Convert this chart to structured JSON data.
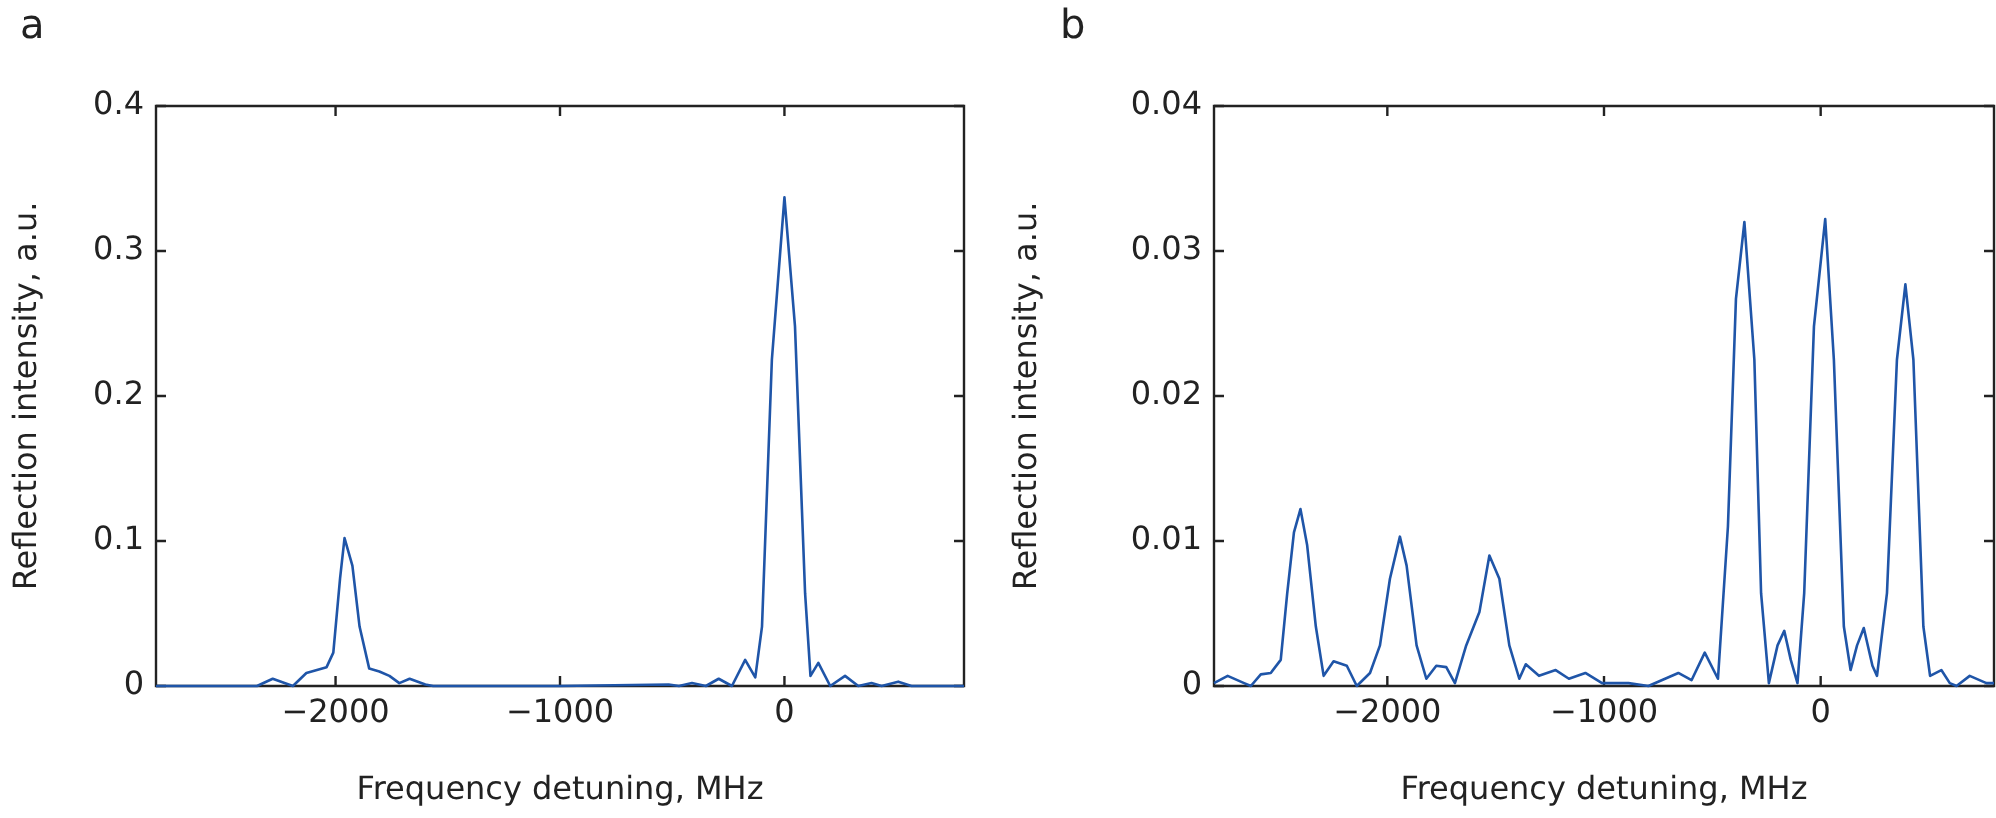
{
  "chart_data": [
    {
      "type": "line",
      "title": "a",
      "xlabel": "Frequency detuning, MHz",
      "ylabel": "Reflection intensity, a.u.",
      "xlim": [
        -2800,
        800
      ],
      "ylim": [
        0,
        0.4
      ],
      "xticks": [
        -2000,
        -1000,
        0
      ],
      "yticks": [
        0,
        0.1,
        0.2,
        0.3,
        0.4
      ],
      "grid": false,
      "marker": "none",
      "line_style": "solid",
      "series": [
        {
          "color": "#1f55a8",
          "x": [
            -2800,
            -2500,
            -2350,
            -2280,
            -2190,
            -2130,
            -2040,
            -2010,
            -1980,
            -1960,
            -1925,
            -1893,
            -1850,
            -1805,
            -1760,
            -1716,
            -1670,
            -1600,
            -1565,
            -1000,
            -516,
            -470,
            -412,
            -350,
            -293,
            -234,
            -175,
            -130,
            -100,
            -56,
            0,
            47,
            92,
            116,
            151,
            204,
            270,
            329,
            388,
            433,
            507,
            566,
            800
          ],
          "values": [
            0,
            0,
            0,
            0.005,
            0,
            0.009,
            0.013,
            0.023,
            0.074,
            0.102,
            0.083,
            0.041,
            0.012,
            0.01,
            0.007,
            0.002,
            0.005,
            0.001,
            0,
            0,
            0.001,
            0,
            0.002,
            0,
            0.005,
            0,
            0.018,
            0.006,
            0.041,
            0.225,
            0.337,
            0.248,
            0.064,
            0.007,
            0.016,
            0,
            0.007,
            0,
            0.002,
            0,
            0.003,
            0,
            0
          ]
        }
      ]
    },
    {
      "type": "line",
      "title": "b",
      "xlabel": "Frequency detuning, MHz",
      "ylabel": "Reflection intensity, a.u.",
      "xlim": [
        -2800,
        800
      ],
      "ylim": [
        0,
        0.04
      ],
      "xticks": [
        -2000,
        -1000,
        0
      ],
      "yticks": [
        0,
        0.01,
        0.02,
        0.03,
        0.04
      ],
      "grid": false,
      "marker": "none",
      "line_style": "solid",
      "series": [
        {
          "color": "#1f55a8",
          "x": [
            -2800,
            -2737,
            -2661,
            -2630,
            -2584,
            -2538,
            -2492,
            -2462,
            -2431,
            -2401,
            -2370,
            -2330,
            -2294,
            -2248,
            -2187,
            -2141,
            -2080,
            -2034,
            -1988,
            -1942,
            -1911,
            -1865,
            -1820,
            -1774,
            -1728,
            -1688,
            -1636,
            -1575,
            -1529,
            -1483,
            -1437,
            -1391,
            -1361,
            -1300,
            -1223,
            -1162,
            -1086,
            -1009,
            -887,
            -795,
            -657,
            -596,
            -535,
            -474,
            -428,
            -391,
            -352,
            -306,
            -275,
            -239,
            -199,
            -168,
            -138,
            -107,
            -76,
            -31,
            21,
            61,
            107,
            138,
            168,
            199,
            239,
            260,
            306,
            352,
            391,
            428,
            474,
            505,
            557,
            596,
            627,
            688,
            765,
            800
          ],
          "values": [
            0.0002,
            0.0007,
            0.0002,
            0,
            0.0008,
            0.0009,
            0.0018,
            0.0064,
            0.0106,
            0.0122,
            0.0097,
            0.0041,
            0.0007,
            0.0017,
            0.0014,
            0,
            0.0009,
            0.0028,
            0.0074,
            0.0103,
            0.0083,
            0.0028,
            0.0005,
            0.0014,
            0.0013,
            0.0002,
            0.0028,
            0.0051,
            0.009,
            0.0074,
            0.0028,
            0.0005,
            0.0015,
            0.0007,
            0.0011,
            0.0005,
            0.0009,
            0.0002,
            0.0002,
            0,
            0.0009,
            0.0004,
            0.0023,
            0.0005,
            0.011,
            0.0267,
            0.032,
            0.0225,
            0.0064,
            0.0002,
            0.0028,
            0.0038,
            0.0018,
            0.0002,
            0.0064,
            0.0248,
            0.0322,
            0.0225,
            0.0041,
            0.0011,
            0.0028,
            0.004,
            0.0014,
            0.0007,
            0.0064,
            0.0225,
            0.0277,
            0.0225,
            0.0041,
            0.0007,
            0.0011,
            0.0002,
            0,
            0.0007,
            0.0002,
            0.0002
          ]
        }
      ]
    }
  ]
}
